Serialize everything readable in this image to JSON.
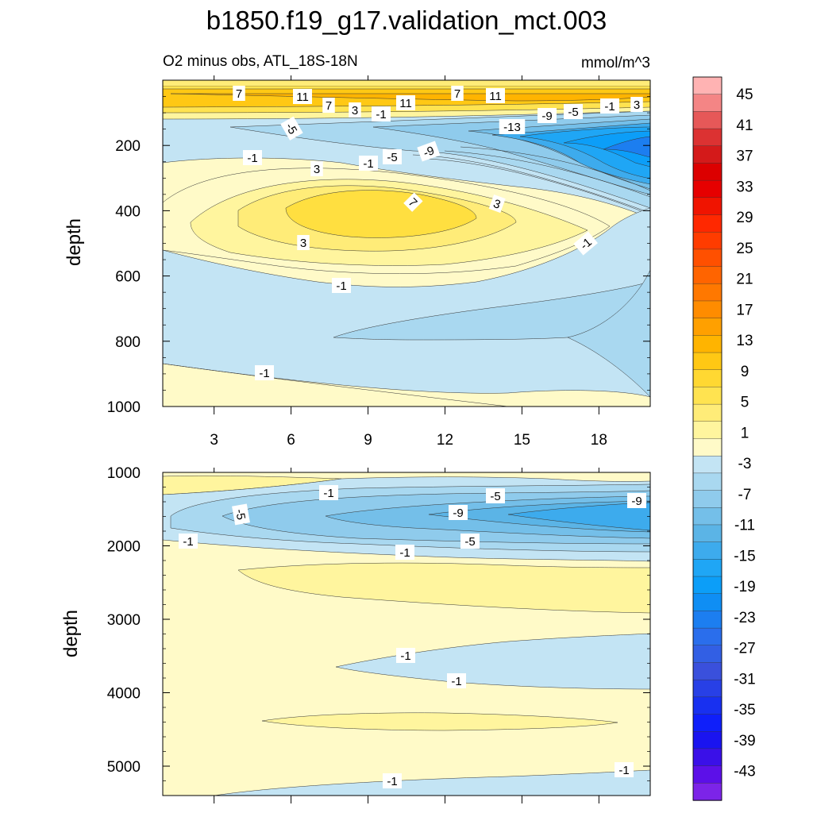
{
  "chart_data": {
    "type": "contour",
    "title": "b1850.f19_g17.validation_mct.003",
    "subtitle_left": "O2 minus obs, ATL_18S-18N",
    "units": "mmol/m^3",
    "panels": [
      {
        "name": "upper",
        "ylabel": "depth",
        "ylim": [
          1000,
          0
        ],
        "xlim": [
          1,
          20
        ],
        "y_ticks": [
          "200",
          "400",
          "600",
          "800",
          "1000"
        ],
        "x_ticks": [
          "3",
          "6",
          "9",
          "12",
          "15",
          "18"
        ],
        "contour_labels": [
          "7",
          "11",
          "7",
          "3",
          "-1",
          "11",
          "7",
          "11",
          "-9",
          "-5",
          "-1",
          "3",
          "-5",
          "-13",
          "-9",
          "-5",
          "-1",
          "-1",
          "3",
          "7",
          "3",
          "3",
          "-1",
          "-1",
          "-1"
        ]
      },
      {
        "name": "lower",
        "ylabel": "depth",
        "ylim": [
          5400,
          1000
        ],
        "xlim": [
          1,
          20
        ],
        "y_ticks": [
          "1000",
          "2000",
          "3000",
          "4000",
          "5000"
        ],
        "contour_labels": [
          "-1",
          "-5",
          "-5",
          "-9",
          "-9",
          "-1",
          "-5",
          "-1",
          "-1",
          "-1",
          "-1",
          "-1"
        ]
      }
    ],
    "colorbar": {
      "labels": [
        "45",
        "41",
        "37",
        "33",
        "29",
        "25",
        "21",
        "17",
        "13",
        "9",
        "5",
        "1",
        "-3",
        "-7",
        "-11",
        "-15",
        "-19",
        "-23",
        "-27",
        "-31",
        "-35",
        "-39",
        "-43"
      ],
      "colors": [
        "#ffb3b3",
        "#f48585",
        "#e65858",
        "#dc3232",
        "#d41a1a",
        "#dc0000",
        "#e60000",
        "#f01400",
        "#ff2800",
        "#ff3c00",
        "#ff5000",
        "#ff6400",
        "#ff7800",
        "#ff8c00",
        "#ffa000",
        "#ffb400",
        "#ffc814",
        "#ffd832",
        "#ffe350",
        "#ffec78",
        "#fff59e",
        "#fffac8",
        "#c3e4f4",
        "#a9d8f0",
        "#8fcbec",
        "#74bfe9",
        "#5bb4e6",
        "#3dabed",
        "#1fa6f5",
        "#0c9ef8",
        "#0f8ef4",
        "#1c7ef0",
        "#2a6eec",
        "#325fe4",
        "#3a50dc",
        "#2840e6",
        "#1830f0",
        "#0f1ffa",
        "#1a14f0",
        "#3a10e8",
        "#5c10e8",
        "#7c24e8"
      ]
    }
  }
}
